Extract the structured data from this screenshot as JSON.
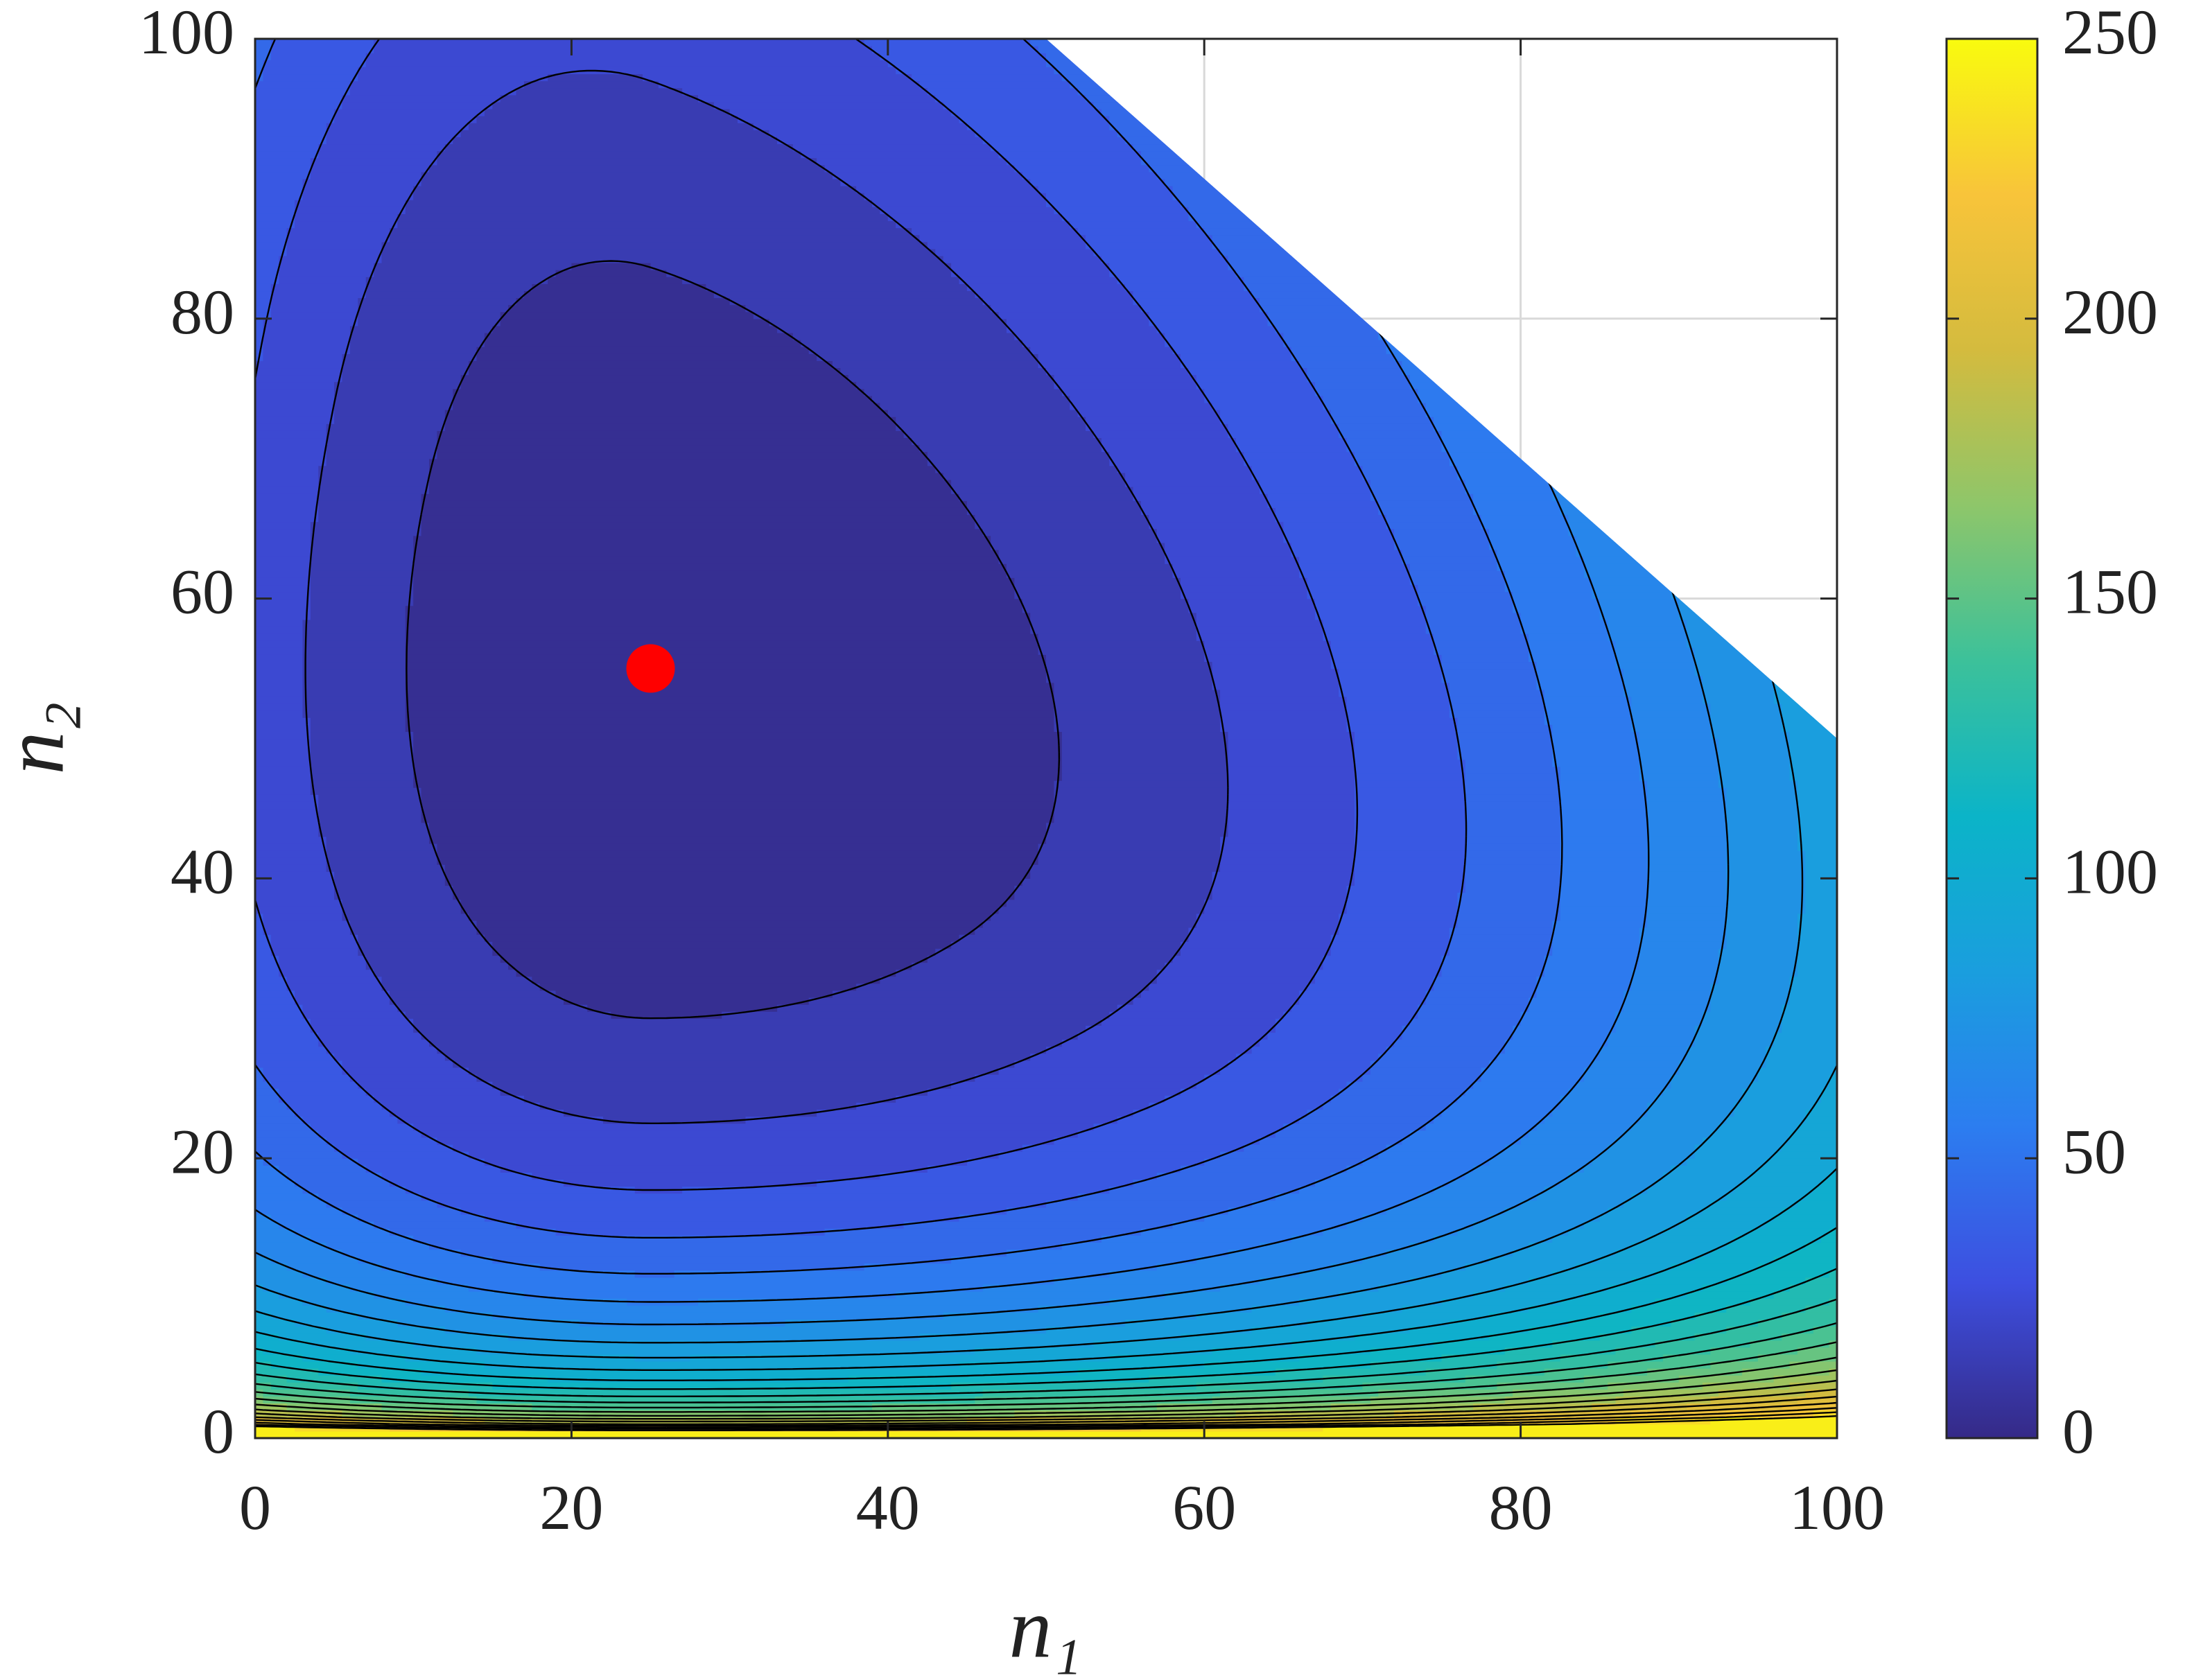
{
  "chart_data": {
    "type": "contour",
    "xlabel": "n₁",
    "ylabel": "n₂",
    "xlim": [
      0,
      100
    ],
    "ylim": [
      0,
      100
    ],
    "xticks": [
      0,
      20,
      40,
      60,
      80,
      100
    ],
    "yticks": [
      0,
      20,
      40,
      60,
      80,
      100
    ],
    "grid": true,
    "levels": [
      10,
      20,
      30,
      40,
      50,
      60,
      70,
      80,
      90,
      100,
      110,
      120,
      130,
      140,
      150,
      160,
      170,
      180,
      190,
      200,
      210,
      220,
      230,
      240
    ],
    "clim": [
      0,
      250
    ],
    "cticks": [
      0,
      50,
      100,
      150,
      200,
      250
    ],
    "colormap": [
      "#352a87",
      "#3d4fe0",
      "#2c7df0",
      "#1a9ede",
      "#0bb4c8",
      "#3cc19a",
      "#8ec66a",
      "#d4bb3e",
      "#f8c43a",
      "#f9fb0e"
    ],
    "marker": {
      "x": 25,
      "y": 55,
      "color": "#ff0000"
    }
  }
}
